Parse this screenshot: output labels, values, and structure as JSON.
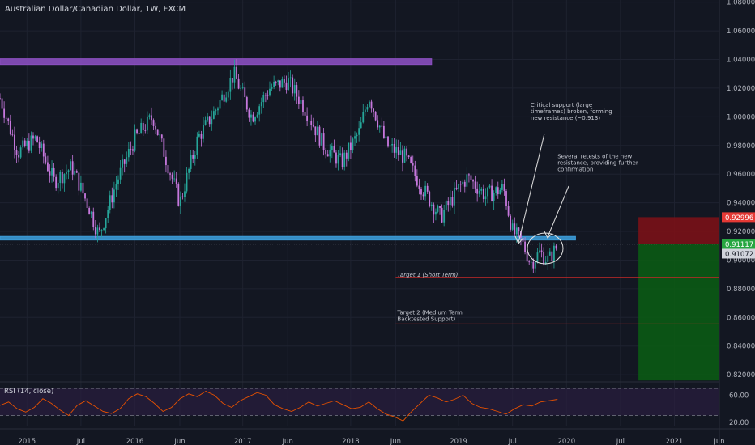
{
  "header": {
    "symbol_title": "Australian Dollar/Canadian Dollar, 1W, FXCM"
  },
  "colors": {
    "background": "#131722",
    "grid": "#1e2230",
    "axis_text": "#b2b5be",
    "bull": "#26a69a",
    "bear": "#c678dd",
    "resistance_zone": "#8a4fbf",
    "support_zone": "#3c9ad6",
    "target_line": "#c62828",
    "stop_zone": "#7a1117",
    "profit_zone": "#0b5a14",
    "rsi_line": "#e65100",
    "rsi_bg": "#2a1e3f",
    "price_tag_stop": "#e53935",
    "price_tag_entry": "#26a641",
    "price_tag_current": "#d1d4dc"
  },
  "chart_data": [
    {
      "type": "candlestick",
      "title": "Australian Dollar/Canadian Dollar, 1W, FXCM",
      "x_axis": {
        "tick_labels": [
          "2015",
          "Jul",
          "2016",
          "Jun",
          "2017",
          "Jun",
          "2018",
          "Jun",
          "2019",
          "Jul",
          "2020",
          "Jul",
          "2021",
          "Jun"
        ],
        "range": [
          "2014-10",
          "2021-06"
        ]
      },
      "y_axis": {
        "tick_labels": [
          "1.08000",
          "1.06000",
          "1.04000",
          "1.02000",
          "1.00000",
          "0.98000",
          "0.96000",
          "0.94000",
          "0.92000",
          "0.90000",
          "0.88000",
          "0.86000",
          "0.84000",
          "0.82000"
        ],
        "range": [
          0.815,
          1.0815
        ],
        "side": "right"
      },
      "price_tags": [
        {
          "label": "0.92996",
          "value": 0.92996,
          "role": "stop"
        },
        {
          "label": "0.91117",
          "value": 0.91117,
          "role": "entry"
        },
        {
          "label": "0.91072",
          "value": 0.91072,
          "role": "current"
        }
      ],
      "series_path": [
        {
          "date": "2014-10",
          "price": 1.013
        },
        {
          "date": "2014-12",
          "price": 0.975
        },
        {
          "date": "2015-02",
          "price": 0.985
        },
        {
          "date": "2015-04",
          "price": 0.955
        },
        {
          "date": "2015-06",
          "price": 0.965
        },
        {
          "date": "2015-08",
          "price": 0.935
        },
        {
          "date": "2015-09",
          "price": 0.917
        },
        {
          "date": "2015-11",
          "price": 0.955
        },
        {
          "date": "2016-01",
          "price": 0.985
        },
        {
          "date": "2016-03",
          "price": 1.0
        },
        {
          "date": "2016-05",
          "price": 0.96
        },
        {
          "date": "2016-06",
          "price": 0.94
        },
        {
          "date": "2016-08",
          "price": 0.985
        },
        {
          "date": "2016-10",
          "price": 1.005
        },
        {
          "date": "2016-12",
          "price": 1.03
        },
        {
          "date": "2017-02",
          "price": 1.0
        },
        {
          "date": "2017-04",
          "price": 1.02
        },
        {
          "date": "2017-06",
          "price": 1.025
        },
        {
          "date": "2017-08",
          "price": 1.005
        },
        {
          "date": "2017-10",
          "price": 0.98
        },
        {
          "date": "2017-12",
          "price": 0.968
        },
        {
          "date": "2018-02",
          "price": 0.99
        },
        {
          "date": "2018-03",
          "price": 1.015
        },
        {
          "date": "2018-05",
          "price": 0.98
        },
        {
          "date": "2018-07",
          "price": 0.972
        },
        {
          "date": "2018-09",
          "price": 0.95
        },
        {
          "date": "2018-11",
          "price": 0.93
        },
        {
          "date": "2019-01",
          "price": 0.95
        },
        {
          "date": "2019-02",
          "price": 0.958
        },
        {
          "date": "2019-04",
          "price": 0.945
        },
        {
          "date": "2019-06",
          "price": 0.95
        },
        {
          "date": "2019-07",
          "price": 0.92
        },
        {
          "date": "2019-08",
          "price": 0.913
        },
        {
          "date": "2019-09",
          "price": 0.898
        },
        {
          "date": "2019-10",
          "price": 0.905
        },
        {
          "date": "2019-11",
          "price": 0.9
        },
        {
          "date": "2019-12",
          "price": 0.91
        }
      ],
      "zones": [
        {
          "kind": "resistance",
          "from": "2014-10",
          "to": "2018-10",
          "low": 1.0365,
          "high": 1.0405
        },
        {
          "kind": "support_turned_resistance",
          "from": "2014-10",
          "to": "2020-02",
          "low": 0.914,
          "high": 0.9165
        },
        {
          "kind": "stop",
          "from": "2020-09",
          "to": "2021-06",
          "low": 0.91117,
          "high": 0.92996
        },
        {
          "kind": "profit",
          "from": "2020-09",
          "to": "2021-06",
          "low": 0.816,
          "high": 0.91117
        }
      ],
      "horizontal_lines": [
        {
          "name": "entry",
          "value": 0.91117,
          "style": "dotted"
        },
        {
          "name": "target1",
          "value": 0.888,
          "from": "2018-06"
        },
        {
          "name": "target2",
          "value": 0.8555,
          "from": "2018-06"
        }
      ],
      "annotations": [
        {
          "name": "target1",
          "text": "Target 1 (Short Term)",
          "date": "2018-06",
          "value": 0.8885
        },
        {
          "name": "target2",
          "text": "Target 2 (Medium Term\nBacktested Support)",
          "date": "2018-06",
          "value": 0.8575
        },
        {
          "name": "critical",
          "text": "Critical support (large\ntimeframes) broken, forming\nnew resistance (~0.913)",
          "date": "2019-09",
          "value": 0.998
        },
        {
          "name": "retests",
          "text": "Several retests of the new\nresistance, providing further\nconfirmation",
          "date": "2019-12",
          "value": 0.962
        }
      ]
    },
    {
      "type": "line",
      "title": "RSI (14, close)",
      "y_axis": {
        "tick_labels": [
          "60.00",
          "20.00"
        ],
        "range": [
          15,
          75
        ]
      },
      "band": {
        "upper": 70,
        "lower": 30
      },
      "series": [
        {
          "values": [
            45,
            50,
            40,
            35,
            42,
            55,
            48,
            38,
            30,
            45,
            52,
            44,
            36,
            33,
            40,
            55,
            62,
            58,
            48,
            36,
            42,
            55,
            62,
            58,
            66,
            60,
            48,
            42,
            52,
            58,
            64,
            60,
            46,
            40,
            36,
            42,
            50,
            44,
            48,
            52,
            46,
            40,
            42,
            50,
            40,
            32,
            28,
            22,
            36,
            48,
            60,
            56,
            50,
            54,
            60,
            48,
            42,
            40,
            36,
            32,
            40,
            46,
            44,
            50,
            52,
            54
          ]
        }
      ]
    }
  ]
}
